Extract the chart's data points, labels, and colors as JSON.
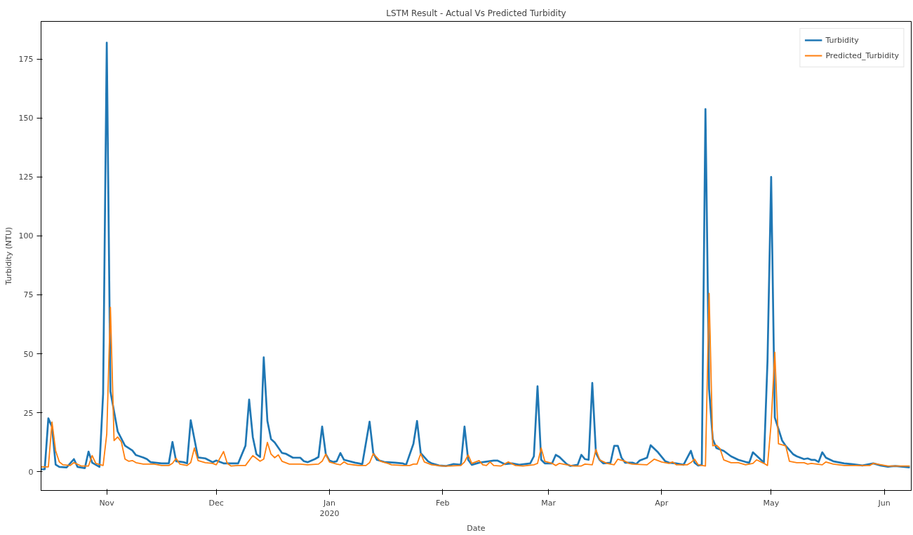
{
  "chart_data": {
    "type": "line",
    "title": "LSTM Result - Actual Vs Predicted Turbidity",
    "xlabel": "Date",
    "ylabel": "Turbidity (NTU)",
    "xlim": [
      "2019-10-14",
      "2020-06-08T09:00"
    ],
    "ylim": [
      -8,
      191
    ],
    "xticks": [
      {
        "value": "2019-11-01",
        "label": "Nov"
      },
      {
        "value": "2019-12-01",
        "label": "Dec"
      },
      {
        "value": "2020-01-01",
        "label": "Jan\n2020"
      },
      {
        "value": "2020-02-01",
        "label": "Feb"
      },
      {
        "value": "2020-03-01",
        "label": "Mar"
      },
      {
        "value": "2020-04-01",
        "label": "Apr"
      },
      {
        "value": "2020-05-01",
        "label": "May"
      },
      {
        "value": "2020-06-01",
        "label": "Jun"
      }
    ],
    "yticks": [
      0,
      25,
      50,
      75,
      100,
      125,
      150,
      175
    ],
    "grid": false,
    "legend": "top right",
    "series": [
      {
        "name": "Turbidity",
        "color": "#1f77b4",
        "x": [
          "2019-10-14",
          "2019-10-15",
          "2019-10-16",
          "2019-10-17",
          "2019-10-18",
          "2019-10-19",
          "2019-10-21",
          "2019-10-23",
          "2019-10-24",
          "2019-10-26",
          "2019-10-27",
          "2019-10-28",
          "2019-10-30",
          "2019-10-31",
          "2019-11-01",
          "2019-11-02",
          "2019-11-04",
          "2019-11-06",
          "2019-11-08",
          "2019-11-09",
          "2019-11-11",
          "2019-11-12",
          "2019-11-13",
          "2019-11-16",
          "2019-11-18",
          "2019-11-19",
          "2019-11-20",
          "2019-11-22",
          "2019-11-23",
          "2019-11-24",
          "2019-11-26",
          "2019-11-28",
          "2019-11-30",
          "2019-12-01",
          "2019-12-03",
          "2019-12-07",
          "2019-12-09",
          "2019-12-10",
          "2019-12-11",
          "2019-12-12",
          "2019-12-13",
          "2019-12-14",
          "2019-12-15",
          "2019-12-16",
          "2019-12-17",
          "2019-12-19",
          "2019-12-20",
          "2019-12-22",
          "2019-12-24",
          "2019-12-25",
          "2019-12-26",
          "2019-12-28",
          "2019-12-29",
          "2019-12-30",
          "2019-12-31",
          "2020-01-01",
          "2020-01-02",
          "2020-01-03",
          "2020-01-04",
          "2020-01-05",
          "2020-01-08",
          "2020-01-09",
          "2020-01-10",
          "2020-01-12",
          "2020-01-13",
          "2020-01-14",
          "2020-01-16",
          "2020-01-19",
          "2020-01-21",
          "2020-01-22",
          "2020-01-24",
          "2020-01-25",
          "2020-01-26",
          "2020-01-28",
          "2020-01-29",
          "2020-01-31",
          "2020-02-02",
          "2020-02-04",
          "2020-02-06",
          "2020-02-07",
          "2020-02-08",
          "2020-02-09",
          "2020-02-11",
          "2020-02-15",
          "2020-02-16",
          "2020-02-18",
          "2020-02-20",
          "2020-02-22",
          "2020-02-25",
          "2020-02-26",
          "2020-02-27",
          "2020-02-28",
          "2020-02-29",
          "2020-03-02",
          "2020-03-03",
          "2020-03-04",
          "2020-03-06",
          "2020-03-07",
          "2020-03-09",
          "2020-03-10",
          "2020-03-11",
          "2020-03-12",
          "2020-03-13",
          "2020-03-14",
          "2020-03-15",
          "2020-03-16",
          "2020-03-18",
          "2020-03-19",
          "2020-03-20",
          "2020-03-21",
          "2020-03-22",
          "2020-03-23",
          "2020-03-24",
          "2020-03-25",
          "2020-03-26",
          "2020-03-28",
          "2020-03-29",
          "2020-03-31",
          "2020-04-02",
          "2020-04-03",
          "2020-04-05",
          "2020-04-07",
          "2020-04-09",
          "2020-04-10",
          "2020-04-11",
          "2020-04-12",
          "2020-04-13",
          "2020-04-14",
          "2020-04-15",
          "2020-04-16",
          "2020-04-18",
          "2020-04-20",
          "2020-04-22",
          "2020-04-24",
          "2020-04-25",
          "2020-04-26",
          "2020-04-28",
          "2020-04-29",
          "2020-04-30",
          "2020-05-01",
          "2020-05-02",
          "2020-05-04",
          "2020-05-05",
          "2020-05-07",
          "2020-05-08",
          "2020-05-10",
          "2020-05-11",
          "2020-05-12",
          "2020-05-13",
          "2020-05-14",
          "2020-05-15",
          "2020-05-16",
          "2020-05-18",
          "2020-05-21",
          "2020-05-23",
          "2020-05-26",
          "2020-05-29",
          "2020-05-31",
          "2020-06-02",
          "2020-06-04",
          "2020-06-08"
        ],
        "values": [
          1,
          1,
          22.6,
          19,
          3,
          2,
          1.8,
          5.3,
          2,
          1.5,
          8.5,
          3.8,
          2,
          33,
          182,
          34,
          17,
          11,
          9,
          7,
          6,
          5.3,
          4,
          3.5,
          3.5,
          12.6,
          4.4,
          4,
          3.5,
          21.8,
          6,
          5.6,
          4,
          4.7,
          3.5,
          3.5,
          11,
          30.6,
          14.7,
          7.4,
          6.2,
          48.5,
          21.5,
          13.8,
          12.4,
          7.9,
          7.6,
          5.9,
          5.9,
          4.4,
          4,
          5.3,
          6.2,
          19.1,
          7.4,
          4.7,
          4.1,
          4.4,
          7.9,
          5,
          3.8,
          3.5,
          3.2,
          21.2,
          7.9,
          5,
          4.1,
          3.8,
          3.5,
          2.9,
          11.8,
          21.5,
          7.9,
          4.4,
          3.5,
          2.6,
          2.4,
          3.2,
          2.9,
          19.1,
          5,
          2.9,
          3.8,
          4.7,
          4.7,
          3.2,
          3.5,
          2.9,
          3.5,
          6.5,
          36.2,
          5,
          3.5,
          3.5,
          7.1,
          6.2,
          3.2,
          2.4,
          2.9,
          7.1,
          5.3,
          5,
          37.6,
          7.9,
          5,
          3.5,
          3.8,
          10.9,
          10.9,
          5.9,
          3.8,
          3.8,
          3.8,
          3.2,
          4.7,
          5.9,
          11.2,
          8.2,
          4.4,
          3.8,
          3.5,
          2.9,
          8.8,
          3.8,
          2.6,
          2.9,
          153.8,
          35,
          13.8,
          10,
          8.8,
          6.5,
          5,
          4.1,
          3.8,
          8.2,
          5.3,
          3.8,
          47,
          125,
          23,
          13.2,
          10.9,
          7.4,
          6.5,
          5.3,
          5.6,
          5,
          5,
          4.1,
          8.2,
          5.9,
          4.4,
          3.5,
          3.2,
          2.6,
          3.5,
          2.6,
          2.1,
          2.4,
          1.8
        ]
      },
      {
        "name": "Predicted_Turbidity",
        "color": "#ff7f0e",
        "x": [
          "2019-10-14",
          "2019-10-16",
          "2019-10-17",
          "2019-10-18",
          "2019-10-19",
          "2019-10-20",
          "2019-10-22",
          "2019-10-23",
          "2019-10-25",
          "2019-10-27",
          "2019-10-28",
          "2019-10-29",
          "2019-10-31",
          "2019-11-01",
          "2019-11-02",
          "2019-11-03",
          "2019-11-04",
          "2019-11-05",
          "2019-11-06",
          "2019-11-07",
          "2019-11-08",
          "2019-11-09",
          "2019-11-11",
          "2019-11-14",
          "2019-11-16",
          "2019-11-18",
          "2019-11-19",
          "2019-11-20",
          "2019-11-21",
          "2019-11-23",
          "2019-11-24",
          "2019-11-25",
          "2019-11-26",
          "2019-11-28",
          "2019-11-30",
          "2019-12-01",
          "2019-12-03",
          "2019-12-04",
          "2019-12-05",
          "2019-12-07",
          "2019-12-09",
          "2019-12-11",
          "2019-12-13",
          "2019-12-14",
          "2019-12-15",
          "2019-12-16",
          "2019-12-17",
          "2019-12-18",
          "2019-12-19",
          "2019-12-21",
          "2019-12-24",
          "2019-12-26",
          "2019-12-29",
          "2019-12-30",
          "2019-12-31",
          "2020-01-01",
          "2020-01-03",
          "2020-01-04",
          "2020-01-05",
          "2020-01-06",
          "2020-01-09",
          "2020-01-11",
          "2020-01-12",
          "2020-01-13",
          "2020-01-15",
          "2020-01-17",
          "2020-01-18",
          "2020-01-21",
          "2020-01-23",
          "2020-01-24",
          "2020-01-25",
          "2020-01-26",
          "2020-01-27",
          "2020-01-29",
          "2020-02-01",
          "2020-02-03",
          "2020-02-06",
          "2020-02-07",
          "2020-02-08",
          "2020-02-09",
          "2020-02-11",
          "2020-02-12",
          "2020-02-13",
          "2020-02-14",
          "2020-02-15",
          "2020-02-17",
          "2020-02-19",
          "2020-02-21",
          "2020-02-23",
          "2020-02-26",
          "2020-02-27",
          "2020-02-28",
          "2020-02-29",
          "2020-03-02",
          "2020-03-03",
          "2020-03-04",
          "2020-03-06",
          "2020-03-08",
          "2020-03-10",
          "2020-03-11",
          "2020-03-13",
          "2020-03-14",
          "2020-03-15",
          "2020-03-17",
          "2020-03-19",
          "2020-03-20",
          "2020-03-22",
          "2020-03-23",
          "2020-03-24",
          "2020-03-28",
          "2020-03-30",
          "2020-04-01",
          "2020-04-03",
          "2020-04-04",
          "2020-04-05",
          "2020-04-08",
          "2020-04-09",
          "2020-04-10",
          "2020-04-11",
          "2020-04-13",
          "2020-04-14",
          "2020-04-15",
          "2020-04-16",
          "2020-04-17",
          "2020-04-18",
          "2020-04-20",
          "2020-04-22",
          "2020-04-24",
          "2020-04-26",
          "2020-04-27",
          "2020-04-29",
          "2020-04-30",
          "2020-05-01",
          "2020-05-02",
          "2020-05-03",
          "2020-05-05",
          "2020-05-06",
          "2020-05-08",
          "2020-05-10",
          "2020-05-11",
          "2020-05-12",
          "2020-05-15",
          "2020-05-16",
          "2020-05-18",
          "2020-05-21",
          "2020-05-25",
          "2020-05-28",
          "2020-05-29",
          "2020-06-02",
          "2020-06-04",
          "2020-06-08"
        ],
        "values": [
          2,
          2,
          21,
          8.8,
          4.1,
          2.9,
          2.6,
          3.8,
          2.4,
          2.4,
          6.8,
          3.5,
          2.6,
          16,
          69.7,
          13.2,
          14.7,
          12.6,
          5.3,
          4.4,
          4.7,
          3.8,
          3.2,
          3.2,
          2.6,
          2.6,
          3.5,
          5.6,
          3.2,
          2.6,
          3.8,
          10,
          4.7,
          3.8,
          3.5,
          2.9,
          8.5,
          3.5,
          2.4,
          2.6,
          2.6,
          6.8,
          4.4,
          5.3,
          12.4,
          7.4,
          5.9,
          7.1,
          4.4,
          3.2,
          3.2,
          2.9,
          3.2,
          4.4,
          7.4,
          4.1,
          3.2,
          2.9,
          4.1,
          3.2,
          2.6,
          2.6,
          3.8,
          7.6,
          4.4,
          3.5,
          2.9,
          2.6,
          2.6,
          3.2,
          3.2,
          7.6,
          4.1,
          2.9,
          2.4,
          2.4,
          2.6,
          4.1,
          7.1,
          3.5,
          4.7,
          2.9,
          2.6,
          4.1,
          2.6,
          2.4,
          4.1,
          2.6,
          2.4,
          2.9,
          3.5,
          10,
          4.4,
          3.5,
          2.6,
          3.5,
          2.9,
          2.4,
          2.4,
          3.2,
          2.9,
          9.4,
          5,
          3.5,
          2.9,
          5.3,
          4.4,
          3.5,
          3.2,
          2.9,
          5.3,
          4.1,
          3.5,
          4.1,
          2.9,
          2.9,
          3.8,
          5.3,
          2.9,
          2.4,
          75.6,
          11,
          11.2,
          9.7,
          5,
          3.8,
          3.8,
          2.9,
          3.5,
          5,
          3.5,
          2.6,
          20.6,
          50.6,
          11.8,
          10.9,
          4.4,
          3.8,
          3.8,
          3.2,
          3.5,
          2.9,
          4.1,
          3.2,
          2.6,
          2.6,
          2.6,
          3.5,
          2.4,
          2.4,
          2.4
        ]
      }
    ]
  }
}
